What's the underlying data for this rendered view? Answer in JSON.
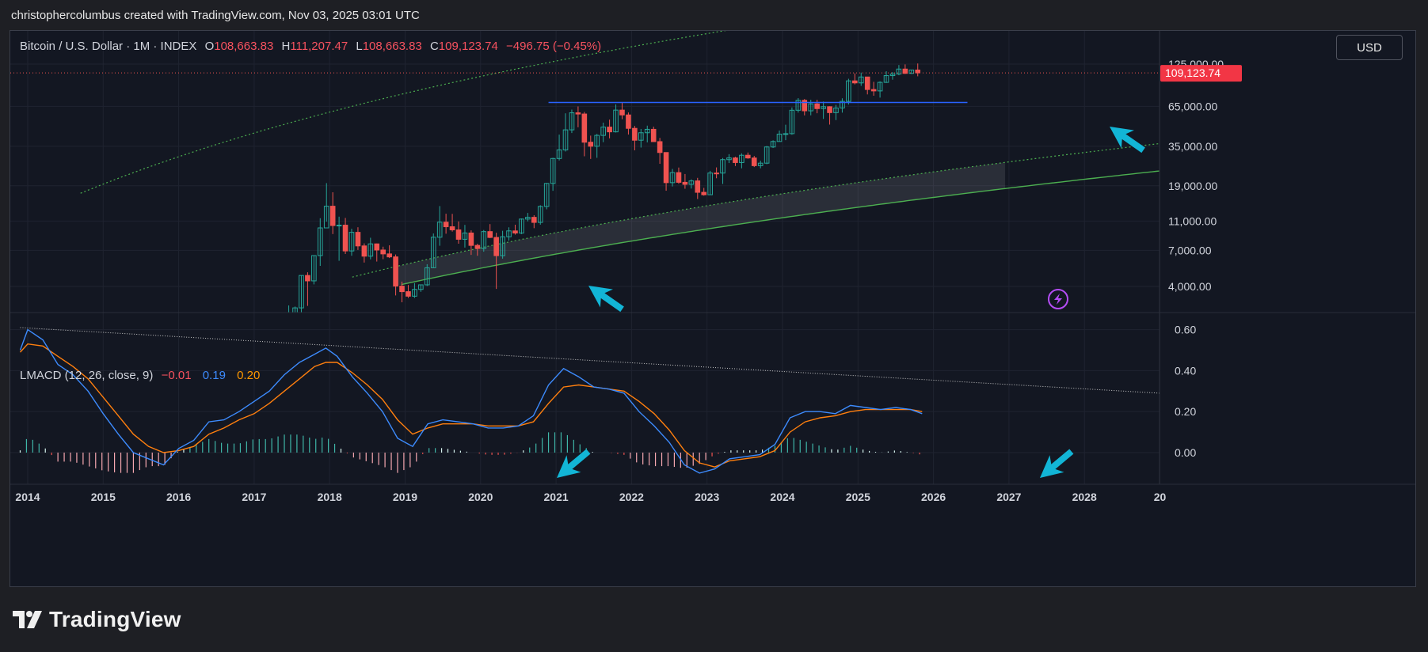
{
  "header": {
    "credit": "christophercolumbus created with TradingView.com, Nov 03, 2025 03:01 UTC"
  },
  "legend": {
    "symbol": "Bitcoin / U.S. Dollar · 1M · INDEX",
    "open_label": "O",
    "open": "108,663.83",
    "high_label": "H",
    "high": "111,207.47",
    "low_label": "L",
    "low": "108,663.83",
    "close_label": "C",
    "close": "109,123.74",
    "change": "−496.75 (−0.45%)"
  },
  "currency_button": "USD",
  "last_price_badge": "109,123.74",
  "indicator": {
    "name": "LMACD (12, 26, close, 9)",
    "histogram": "−0.01",
    "macd": "0.19",
    "signal": "0.20"
  },
  "brand": {
    "name": "TradingView"
  },
  "colors": {
    "up": "#26a69a",
    "down": "#ef5350",
    "macd_line": "#3d8bfd",
    "signal_line": "#ff7f0e",
    "trendline": "#2962ff",
    "arrow": "#12b5d6",
    "support_line": "#4caf50"
  },
  "chart_data": [
    {
      "type": "candlestick",
      "title": "Bitcoin / U.S. Dollar · 1M · INDEX",
      "y_scale": "log",
      "y_ticks": [
        4000,
        7000,
        11000,
        19000,
        35000,
        65000,
        125000
      ],
      "y_tick_labels": [
        "4,000.00",
        "7,000.00",
        "11,000.00",
        "19,000.00",
        "35,000.00",
        "65,000.00",
        "125,000.00"
      ],
      "x_ticks": [
        "2014",
        "2015",
        "2016",
        "2017",
        "2018",
        "2019",
        "2020",
        "2021",
        "2022",
        "2023",
        "2024",
        "2025",
        "2026",
        "2027",
        "2028",
        "20"
      ],
      "last_price": 109123.74,
      "horizontal_line": 69000,
      "series": [
        {
          "name": "Monthly close (approx.)",
          "x": [
            "2017-06",
            "2017-07",
            "2017-08",
            "2017-09",
            "2017-10",
            "2017-11",
            "2017-12",
            "2018-01",
            "2018-02",
            "2018-03",
            "2018-04",
            "2018-05",
            "2018-06",
            "2018-07",
            "2018-08",
            "2018-09",
            "2018-10",
            "2018-11",
            "2018-12",
            "2019-01",
            "2019-02",
            "2019-03",
            "2019-04",
            "2019-05",
            "2019-06",
            "2019-07",
            "2019-08",
            "2019-09",
            "2019-10",
            "2019-11",
            "2019-12",
            "2020-01",
            "2020-02",
            "2020-03",
            "2020-04",
            "2020-05",
            "2020-06",
            "2020-07",
            "2020-08",
            "2020-09",
            "2020-10",
            "2020-11",
            "2020-12",
            "2021-01",
            "2021-02",
            "2021-03",
            "2021-04",
            "2021-05",
            "2021-06",
            "2021-07",
            "2021-08",
            "2021-09",
            "2021-10",
            "2021-11",
            "2021-12",
            "2022-01",
            "2022-02",
            "2022-03",
            "2022-04",
            "2022-05",
            "2022-06",
            "2022-07",
            "2022-08",
            "2022-09",
            "2022-10",
            "2022-11",
            "2022-12",
            "2023-01",
            "2023-02",
            "2023-03",
            "2023-04",
            "2023-05",
            "2023-06",
            "2023-07",
            "2023-08",
            "2023-09",
            "2023-10",
            "2023-11",
            "2023-12",
            "2024-01",
            "2024-02",
            "2024-03",
            "2024-04",
            "2024-05",
            "2024-06",
            "2024-07",
            "2024-08",
            "2024-09",
            "2024-10",
            "2024-11",
            "2024-12",
            "2025-01",
            "2025-02",
            "2025-03",
            "2025-04",
            "2025-05",
            "2025-06",
            "2025-07",
            "2025-08",
            "2025-09",
            "2025-10"
          ],
          "open": [
            2400,
            2480,
            2870,
            4740,
            4360,
            6450,
            9900,
            13850,
            10270,
            10330,
            6930,
            9240,
            7490,
            6390,
            7730,
            7030,
            6620,
            6320,
            4020,
            3690,
            3440,
            3820,
            4100,
            5340,
            8570,
            10820,
            10080,
            9600,
            8300,
            9150,
            7550,
            7200,
            9350,
            8540,
            6440,
            8630,
            9450,
            9140,
            11350,
            11660,
            10780,
            13800,
            19700,
            28990,
            33110,
            45160,
            58800,
            57720,
            37300,
            35040,
            41460,
            47130,
            43790,
            61320,
            56900,
            46220,
            38470,
            43190,
            45540,
            37640,
            31800,
            19940,
            23300,
            20050,
            19430,
            20490,
            17170,
            16540,
            23140,
            23130,
            28480,
            29250,
            27220,
            30480,
            29230,
            25940,
            26970,
            34650,
            37720,
            42280,
            42580,
            61180,
            71300,
            60640,
            67500,
            62760,
            64630,
            58970,
            63330,
            70220,
            96410,
            93430,
            102400,
            84350,
            82540,
            94210,
            104600,
            107140,
            115760,
            108250,
            114050
          ],
          "high": [
            2980,
            2930,
            4740,
            4980,
            6470,
            11500,
            19800,
            17180,
            11780,
            11550,
            9770,
            10000,
            7790,
            8500,
            7770,
            7400,
            7560,
            6560,
            4310,
            4090,
            4210,
            4120,
            5640,
            9080,
            13880,
            12330,
            12300,
            10940,
            10370,
            9530,
            7750,
            9580,
            10500,
            9180,
            9470,
            9990,
            10400,
            11450,
            12480,
            12050,
            14060,
            19860,
            29300,
            41950,
            58350,
            61800,
            64900,
            59600,
            41300,
            42400,
            50500,
            52900,
            66980,
            69000,
            59100,
            47990,
            45800,
            48200,
            47440,
            39850,
            31900,
            24660,
            25200,
            22800,
            20990,
            21480,
            18400,
            23950,
            25250,
            29200,
            31000,
            29800,
            31400,
            31800,
            30150,
            28000,
            35200,
            38400,
            44700,
            48900,
            63900,
            73800,
            72800,
            71950,
            71900,
            70020,
            65100,
            66500,
            73600,
            99600,
            108350,
            109600,
            102500,
            95000,
            95750,
            111900,
            110600,
            123200,
            124400,
            114800,
            126200
          ],
          "low": [
            2100,
            1830,
            2610,
            2960,
            4130,
            5500,
            10900,
            9000,
            5950,
            6610,
            6430,
            7040,
            5790,
            6080,
            5880,
            6100,
            6210,
            3480,
            3130,
            3350,
            3350,
            3680,
            4030,
            5330,
            7510,
            9050,
            9350,
            7750,
            7300,
            6520,
            6430,
            6850,
            8450,
            3850,
            6150,
            8120,
            8920,
            8990,
            10950,
            9860,
            10410,
            13200,
            17580,
            28130,
            32300,
            43000,
            47000,
            30000,
            28800,
            29300,
            37330,
            39600,
            43350,
            53260,
            42000,
            32900,
            34320,
            37200,
            37600,
            26700,
            17600,
            18800,
            19600,
            18150,
            18200,
            15480,
            16300,
            16500,
            21350,
            19550,
            27020,
            25800,
            24900,
            28860,
            25400,
            24900,
            26550,
            34100,
            37600,
            38500,
            41880,
            59000,
            56500,
            56550,
            58400,
            53490,
            49000,
            52550,
            58950,
            66800,
            91300,
            89250,
            78200,
            76600,
            74400,
            93400,
            98200,
            105200,
            107300,
            107300,
            103500
          ],
          "close": [
            2480,
            2870,
            4740,
            4360,
            6450,
            9900,
            13850,
            10270,
            10330,
            6930,
            9240,
            7490,
            6390,
            7730,
            7030,
            6620,
            6320,
            4020,
            3690,
            3440,
            3820,
            4100,
            5340,
            8570,
            10820,
            10080,
            9600,
            8300,
            9150,
            7550,
            7200,
            9350,
            8540,
            6440,
            8630,
            9450,
            9140,
            11350,
            11660,
            10780,
            13800,
            19700,
            28990,
            33110,
            45160,
            58800,
            57720,
            37300,
            35040,
            41460,
            47130,
            43790,
            61320,
            56900,
            46220,
            38470,
            43190,
            45540,
            37640,
            31800,
            19940,
            23300,
            20050,
            19430,
            20490,
            17170,
            16540,
            23140,
            23130,
            28480,
            29250,
            27220,
            30480,
            29230,
            25940,
            26970,
            34650,
            37720,
            42280,
            42580,
            61180,
            71300,
            60640,
            67500,
            62760,
            64630,
            58970,
            63330,
            70220,
            96410,
            93430,
            102400,
            84350,
            82540,
            94210,
            104600,
            107140,
            115760,
            108250,
            114050,
            109124
          ]
        }
      ]
    },
    {
      "type": "line",
      "title": "LMACD (12, 26, close, 9)",
      "y_ticks": [
        0.0,
        0.2,
        0.4,
        0.6
      ],
      "y_tick_labels": [
        "0.00",
        "0.20",
        "0.40",
        "0.60"
      ],
      "x": [
        2013.9,
        2014.0,
        2014.2,
        2014.4,
        2014.6,
        2014.8,
        2015.0,
        2015.2,
        2015.4,
        2015.6,
        2015.8,
        2016.0,
        2016.2,
        2016.4,
        2016.6,
        2016.8,
        2017.0,
        2017.2,
        2017.4,
        2017.6,
        2017.8,
        2017.95,
        2018.1,
        2018.3,
        2018.5,
        2018.7,
        2018.9,
        2019.1,
        2019.3,
        2019.5,
        2019.7,
        2019.9,
        2020.1,
        2020.3,
        2020.5,
        2020.7,
        2020.9,
        2021.1,
        2021.3,
        2021.5,
        2021.7,
        2021.9,
        2022.1,
        2022.3,
        2022.5,
        2022.7,
        2022.9,
        2023.1,
        2023.3,
        2023.5,
        2023.7,
        2023.9,
        2024.1,
        2024.3,
        2024.5,
        2024.7,
        2024.9,
        2025.1,
        2025.3,
        2025.5,
        2025.7,
        2025.85
      ],
      "series": [
        {
          "name": "LMACD",
          "values": [
            0.5,
            0.6,
            0.55,
            0.43,
            0.38,
            0.3,
            0.19,
            0.09,
            0.0,
            -0.03,
            -0.06,
            0.02,
            0.06,
            0.15,
            0.16,
            0.2,
            0.25,
            0.3,
            0.38,
            0.44,
            0.48,
            0.51,
            0.47,
            0.37,
            0.29,
            0.2,
            0.07,
            0.03,
            0.14,
            0.16,
            0.15,
            0.14,
            0.12,
            0.12,
            0.13,
            0.18,
            0.33,
            0.41,
            0.37,
            0.32,
            0.31,
            0.29,
            0.2,
            0.13,
            0.05,
            -0.06,
            -0.1,
            -0.08,
            -0.03,
            -0.02,
            -0.01,
            0.04,
            0.17,
            0.2,
            0.2,
            0.19,
            0.23,
            0.22,
            0.21,
            0.22,
            0.21,
            0.19
          ]
        },
        {
          "name": "Signal",
          "values": [
            0.49,
            0.53,
            0.52,
            0.47,
            0.42,
            0.36,
            0.27,
            0.18,
            0.09,
            0.03,
            0.0,
            0.01,
            0.03,
            0.09,
            0.12,
            0.16,
            0.19,
            0.24,
            0.3,
            0.36,
            0.42,
            0.44,
            0.44,
            0.39,
            0.33,
            0.26,
            0.16,
            0.09,
            0.12,
            0.14,
            0.14,
            0.14,
            0.13,
            0.13,
            0.13,
            0.15,
            0.24,
            0.32,
            0.33,
            0.32,
            0.31,
            0.3,
            0.25,
            0.19,
            0.11,
            0.01,
            -0.05,
            -0.07,
            -0.04,
            -0.03,
            -0.02,
            0.01,
            0.1,
            0.15,
            0.17,
            0.18,
            0.2,
            0.21,
            0.21,
            0.21,
            0.21,
            0.2
          ]
        }
      ]
    }
  ]
}
